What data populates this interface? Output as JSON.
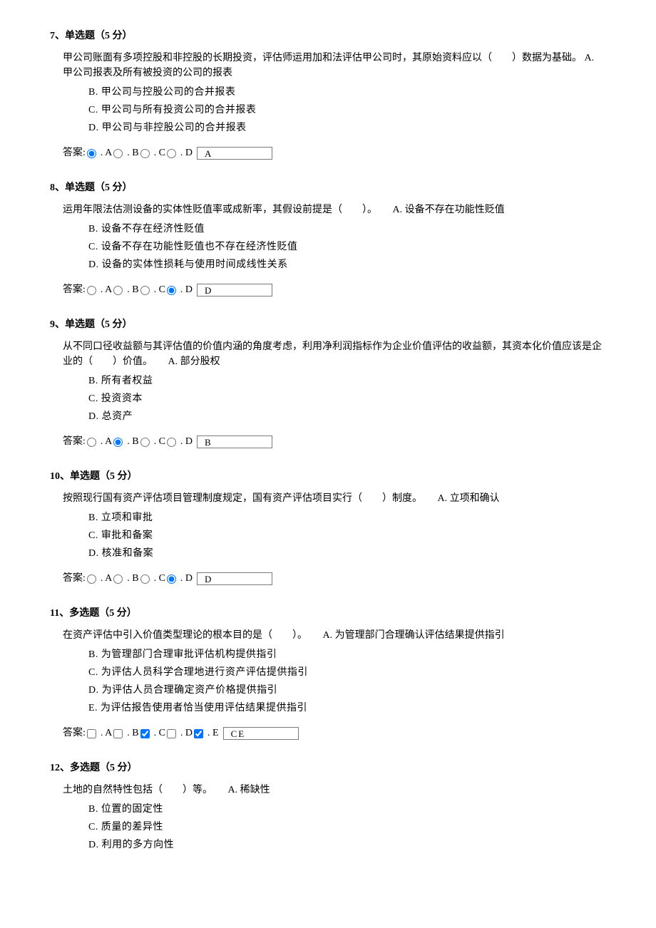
{
  "questions": [
    {
      "num": "7",
      "type_label": "单选题（5 分）",
      "stem": "甲公司账面有多项控股和非控股的长期投资，评估师运用加和法评估甲公司时，其原始资料应以（　　）数据为基础。 A. 甲公司报表及所有被投资的公司的报表",
      "opts": {
        "B": "B. 甲公司与控股公司的合并报表",
        "C": "C. 甲公司与所有投资公司的合并报表",
        "D": "D. 甲公司与非控股公司的合并报表"
      },
      "answer_label": "答案:",
      "letters": {
        "A": ". A",
        "B": ". B",
        "C": ". C",
        "D": ". D"
      },
      "selected": "A",
      "answer_value": "A",
      "input_type": "radio"
    },
    {
      "num": "8",
      "type_label": "单选题（5 分）",
      "stem": "运用年限法估测设备的实体性贬值率或成新率，其假设前提是（　　）。",
      "first_opt": "A. 设备不存在功能性贬值",
      "opts": {
        "B": "B. 设备不存在经济性贬值",
        "C": "C. 设备不存在功能性贬值也不存在经济性贬值",
        "D": "D. 设备的实体性损耗与使用时间成线性关系"
      },
      "answer_label": "答案:",
      "letters": {
        "A": ". A",
        "B": ". B",
        "C": ". C",
        "D": ". D"
      },
      "selected": "D",
      "answer_value": "D",
      "input_type": "radio"
    },
    {
      "num": "9",
      "type_label": "单选题（5 分）",
      "stem": "从不同口径收益额与其评估值的价值内涵的角度考虑，利用净利润指标作为企业价值评估的收益额，其资本化价值应该是企业的（　　）价值。",
      "first_opt": "A. 部分股权",
      "opts": {
        "B": "B. 所有者权益",
        "C": "C. 投资资本",
        "D": "D. 总资产"
      },
      "answer_label": "答案:",
      "letters": {
        "A": ". A",
        "B": ". B",
        "C": ". C",
        "D": ". D"
      },
      "selected": "B",
      "answer_value": "B",
      "input_type": "radio"
    },
    {
      "num": "10",
      "type_label": "单选题（5 分）",
      "stem": "按照现行国有资产评估项目管理制度规定，国有资产评估项目实行（　　）制度。",
      "first_opt": "A. 立项和确认",
      "opts": {
        "B": "B. 立项和审批",
        "C": "C. 审批和备案",
        "D": "D. 核准和备案"
      },
      "answer_label": "答案:",
      "letters": {
        "A": ". A",
        "B": ". B",
        "C": ". C",
        "D": ". D"
      },
      "selected": "D",
      "answer_value": "D",
      "input_type": "radio"
    },
    {
      "num": "11",
      "type_label": "多选题（5 分）",
      "stem": "在资产评估中引入价值类型理论的根本目的是（　　）。",
      "first_opt": "A. 为管理部门合理确认评估结果提供指引",
      "opts": {
        "B": "B. 为管理部门合理审批评估机构提供指引",
        "C": "C. 为评估人员科学合理地进行资产评估提供指引",
        "D": "D. 为评估人员合理确定资产价格提供指引",
        "E": "E. 为评估报告使用者恰当使用评估结果提供指引"
      },
      "answer_label": "答案:",
      "letters": {
        "A": ". A",
        "B": ". B",
        "C": ". C",
        "D": ". D",
        "E": ". E"
      },
      "selected_multi": [
        "C",
        "E"
      ],
      "answer_value": "CE",
      "input_type": "checkbox"
    },
    {
      "num": "12",
      "type_label": "多选题（5 分）",
      "stem": "土地的自然特性包括（　　）等。",
      "first_opt": "A. 稀缺性",
      "opts": {
        "B": "B. 位置的固定性",
        "C": "C. 质量的差异性",
        "D": "D. 利用的多方向性"
      },
      "answer_label": "",
      "letters": {},
      "answer_value": "",
      "input_type": "none"
    }
  ]
}
